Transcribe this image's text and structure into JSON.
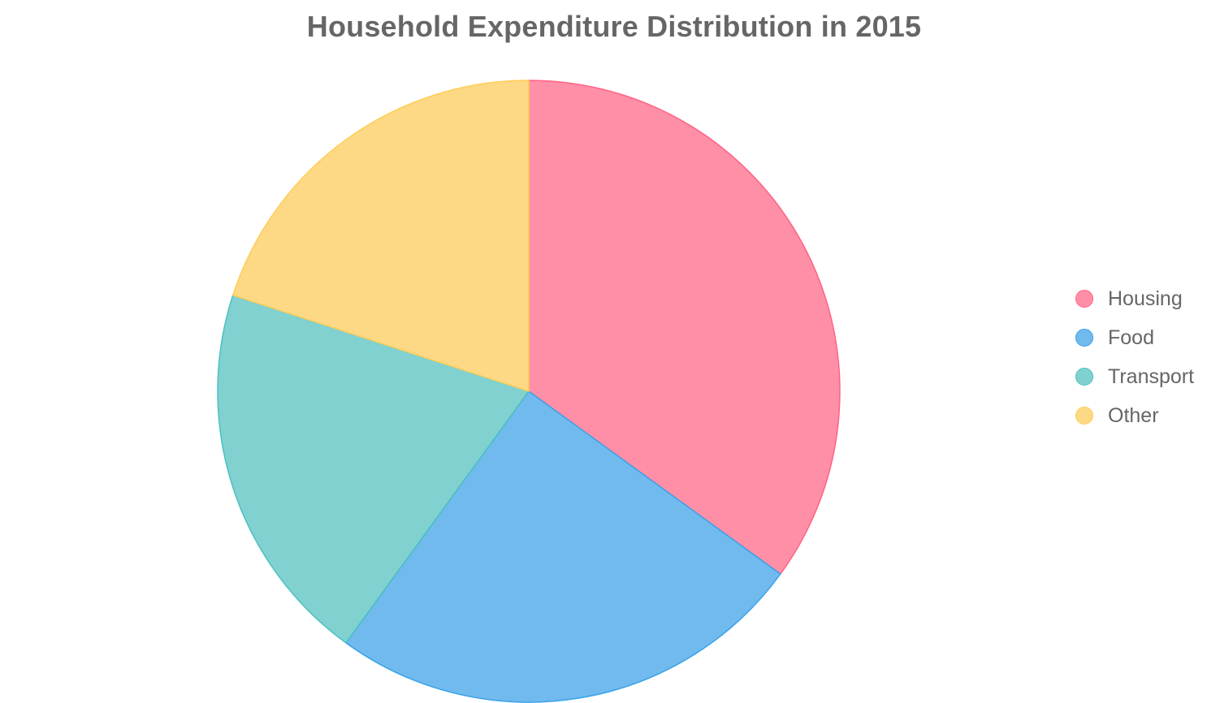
{
  "chart_data": {
    "type": "pie",
    "title": "Household Expenditure Distribution in 2015",
    "slices": [
      {
        "label": "Housing",
        "value": 35,
        "fill": "#ff8fa7",
        "stroke": "#ff6384"
      },
      {
        "label": "Food",
        "value": 25,
        "fill": "#71baee",
        "stroke": "#36a2eb"
      },
      {
        "label": "Transport",
        "value": 20,
        "fill": "#81d1d1",
        "stroke": "#4bc0c0"
      },
      {
        "label": "Other",
        "value": 20,
        "fill": "#fdd986",
        "stroke": "#ffcd56"
      }
    ],
    "legend_position": "right"
  }
}
